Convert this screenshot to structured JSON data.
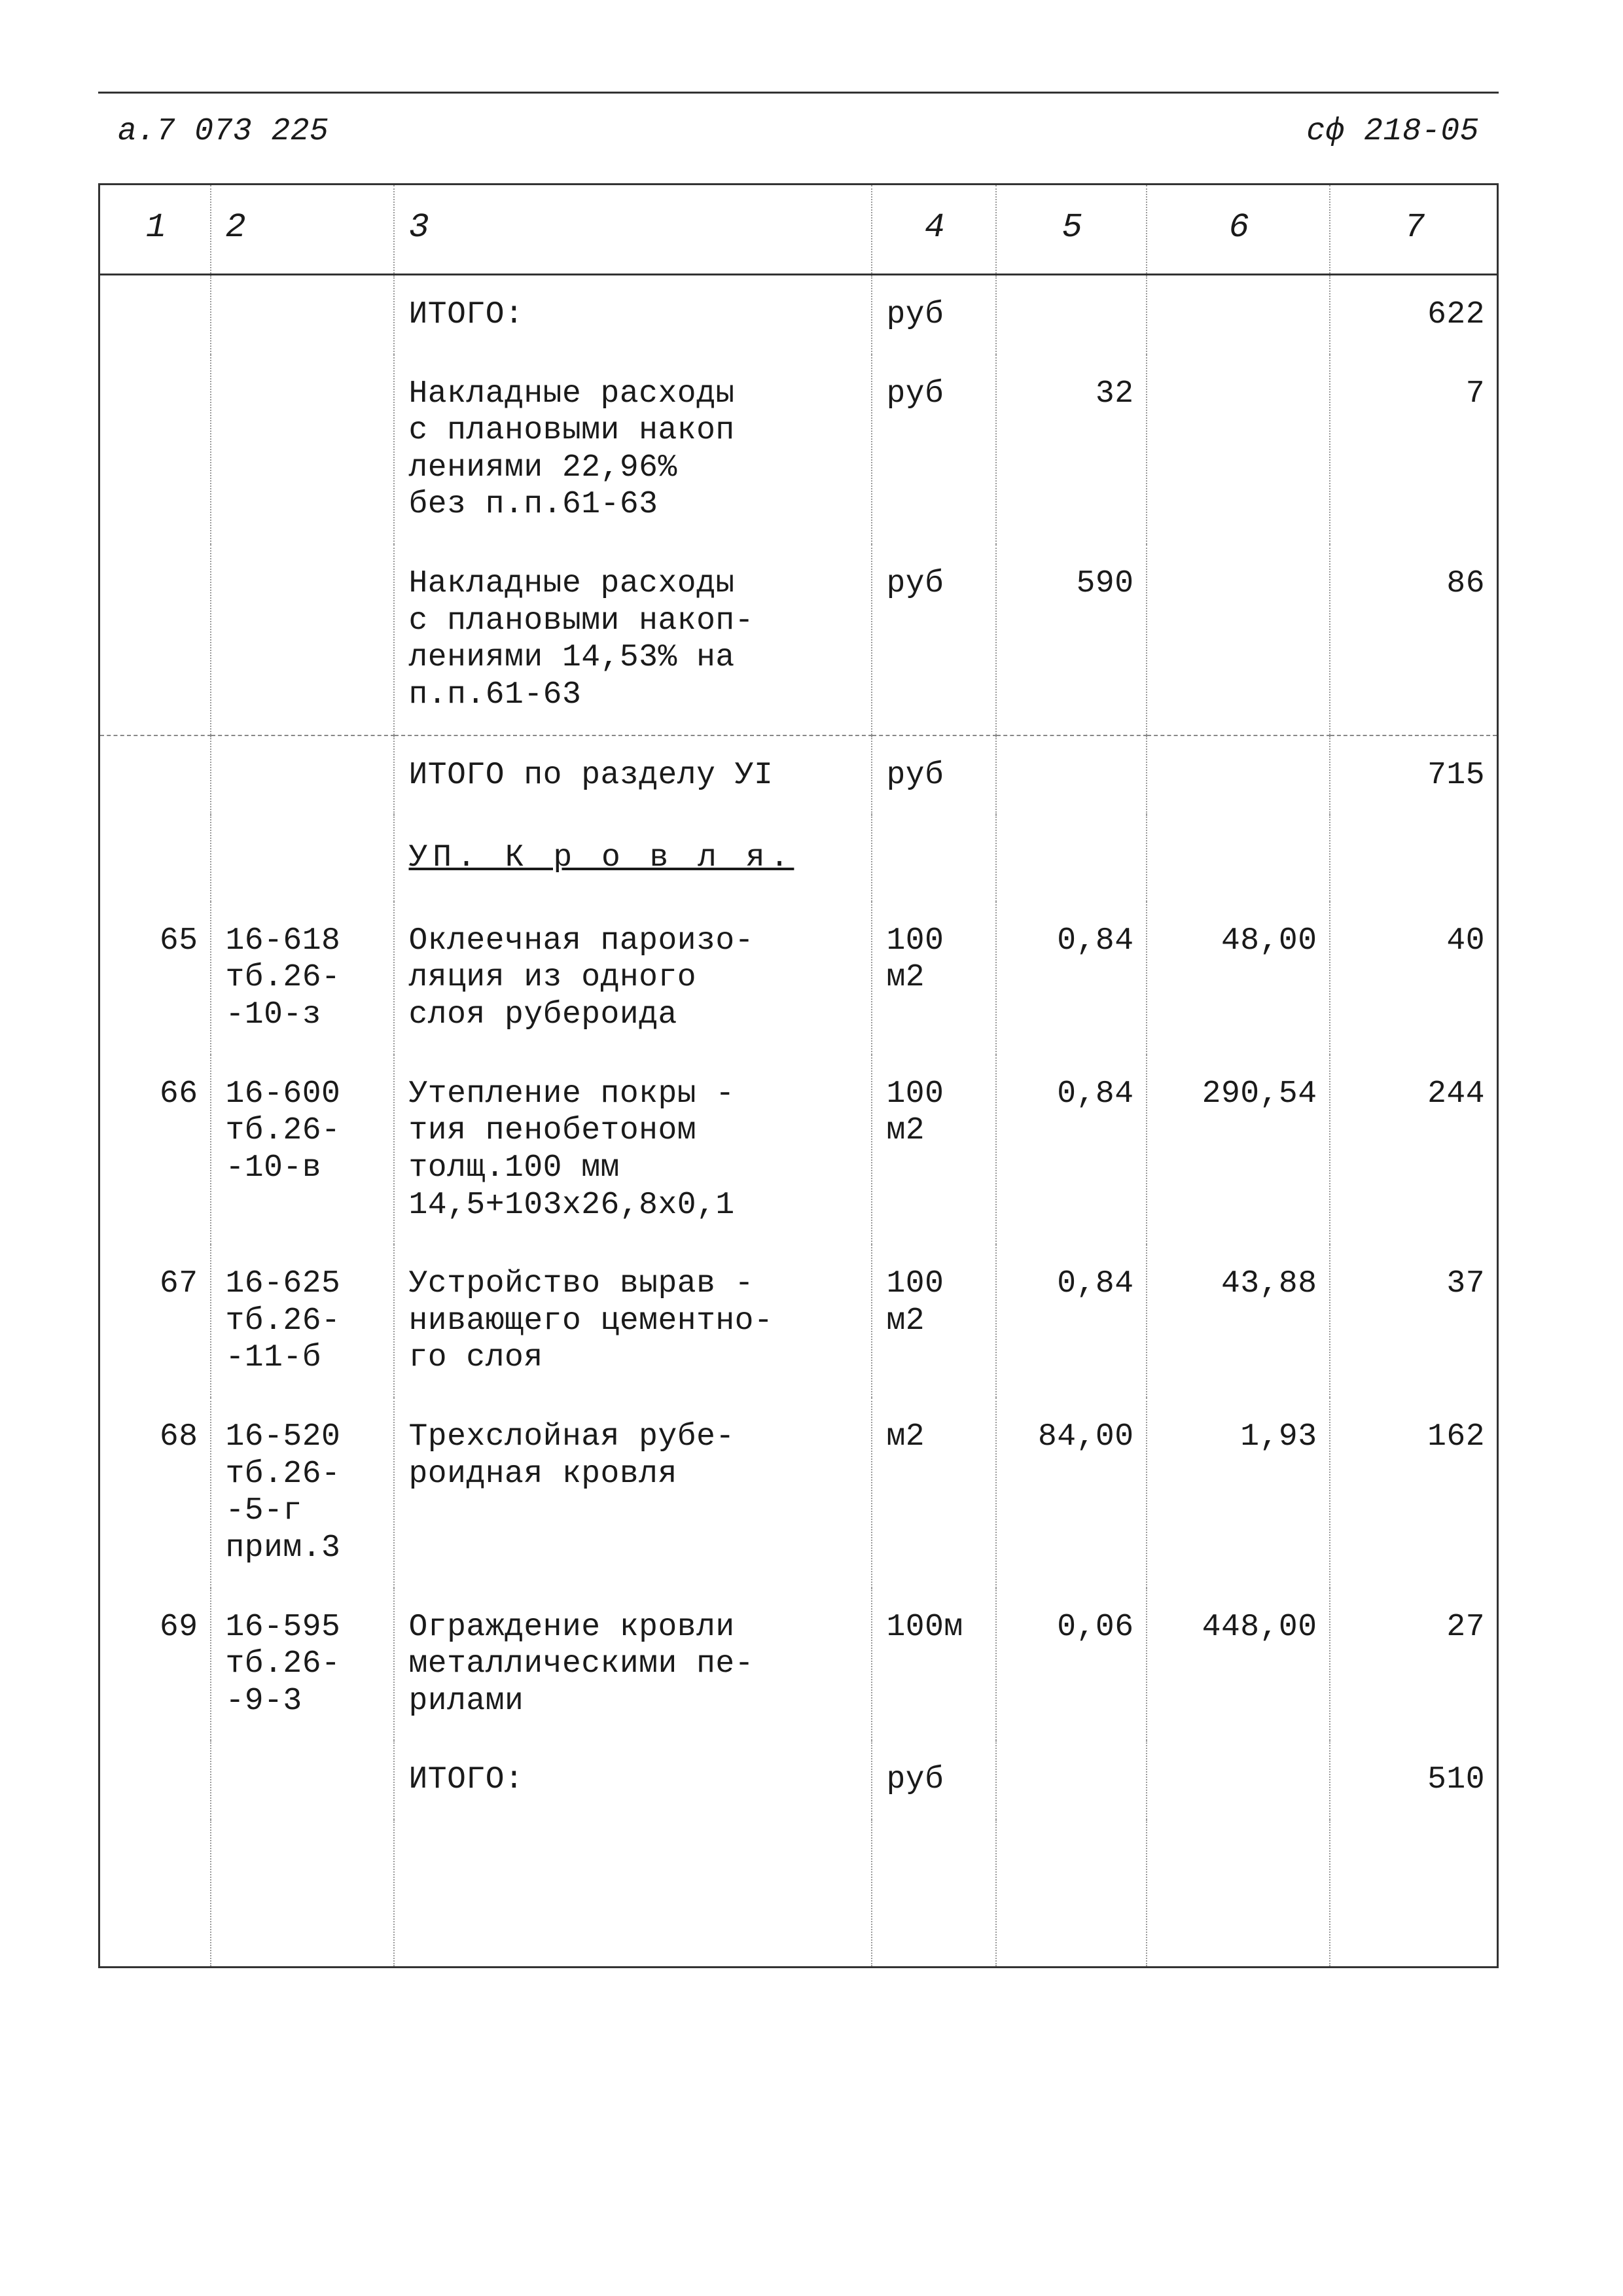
{
  "header": {
    "left": "а.7  073 225",
    "right": "сф 218-05"
  },
  "column_headers": [
    "1",
    "2",
    "3",
    "4",
    "5",
    "6",
    "7"
  ],
  "rows": [
    {
      "c1": "",
      "c2": "",
      "c3": "ИТОГО:",
      "c4": "руб",
      "c5": "",
      "c6": "",
      "c7": "622"
    },
    {
      "c1": "",
      "c2": "",
      "c3": "Накладные расходы\nс плановыми накоп\nлениями 22,96%\nбез п.п.61-63",
      "c4": "руб",
      "c5": "32",
      "c6": "",
      "c7": "7"
    },
    {
      "c1": "",
      "c2": "",
      "c3": "Накладные расходы\nс плановыми накоп-\nлениями 14,53% на\nп.п.61-63",
      "c4": "руб",
      "c5": "590",
      "c6": "",
      "c7": "86"
    },
    {
      "sep": true,
      "c1": "",
      "c2": "",
      "c3": "ИТОГО по разделу УI",
      "c4": "руб",
      "c5": "",
      "c6": "",
      "c7": "715"
    },
    {
      "section": true,
      "c3": "УП.  К р о в л я."
    },
    {
      "c1": "65",
      "c2": "16-618\nтб.26-\n-10-з",
      "c3": "Оклеечная пароизо-\nляция из одного\nслоя рубероида",
      "c4": "100\nм2",
      "c5": "0,84",
      "c6": "48,00",
      "c7": "40"
    },
    {
      "c1": "66",
      "c2": "16-600\nтб.26-\n-10-в",
      "c3": "Утепление покры -\nтия пенобетоном\nтолщ.100 мм\n14,5+103х26,8х0,1",
      "c4": "100\nм2",
      "c5": "0,84",
      "c6": "290,54",
      "c7": "244"
    },
    {
      "c1": "67",
      "c2": "16-625\nтб.26-\n-11-б",
      "c3": "Устройство вырав -\nнивающего цементно-\nго слоя",
      "c4": "100\nм2",
      "c5": "0,84",
      "c6": "43,88",
      "c7": "37"
    },
    {
      "c1": "68",
      "c2": "16-520\nтб.26-\n-5-г\nприм.3",
      "c3": "Трехслойная рубе-\nроидная кровля",
      "c4": "м2",
      "c5": "84,00",
      "c6": "1,93",
      "c7": "162"
    },
    {
      "c1": "69",
      "c2": "16-595\nтб.26-\n-9-3",
      "c3": "Ограждение кровли\nметаллическими пе-\nрилами",
      "c4": "100м",
      "c5": "0,06",
      "c6": "448,00",
      "c7": "27"
    },
    {
      "c1": "",
      "c2": "",
      "c3": "ИТОГО:",
      "c4": "руб",
      "c5": "",
      "c6": "",
      "c7": "510"
    }
  ]
}
